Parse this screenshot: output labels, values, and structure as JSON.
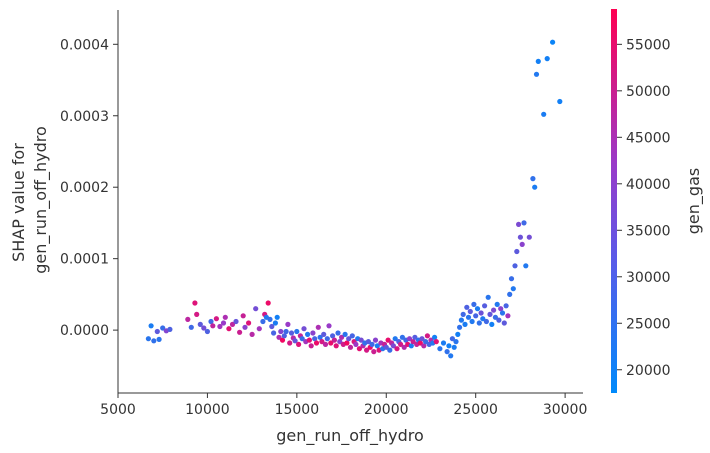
{
  "chart_data": {
    "type": "scatter",
    "title": "",
    "xlabel": "gen_run_off_hydro",
    "ylabel_lines": [
      "SHAP value for",
      "gen_run_off_hydro"
    ],
    "xlim": [
      5000,
      31000
    ],
    "ylim": [
      -8.8e-05,
      0.000448
    ],
    "xticks": [
      5000,
      10000,
      15000,
      20000,
      25000,
      30000
    ],
    "xtick_labels": [
      "5000",
      "10000",
      "15000",
      "20000",
      "25000",
      "30000"
    ],
    "yticks": [
      0.0,
      0.0001,
      0.0002,
      0.0003,
      0.0004
    ],
    "ytick_labels": [
      "0.0000",
      "0.0001",
      "0.0002",
      "0.0003",
      "0.0004"
    ],
    "grid": false,
    "colorbar": {
      "label": "gen_gas",
      "range": [
        17500,
        58800
      ],
      "ticks": [
        20000,
        25000,
        30000,
        35000,
        40000,
        45000,
        50000,
        55000
      ],
      "tick_labels": [
        "20000",
        "25000",
        "30000",
        "35000",
        "40000",
        "45000",
        "50000",
        "55000"
      ],
      "colormap": [
        "#008afb",
        "#ff0052"
      ]
    },
    "points": [
      [
        6700,
        -1.2e-05,
        23000
      ],
      [
        6850,
        6e-06,
        21000
      ],
      [
        7000,
        -1.5e-05,
        24000
      ],
      [
        7200,
        -2e-06,
        30000
      ],
      [
        7300,
        -1.3e-05,
        23000
      ],
      [
        7500,
        3e-06,
        25000
      ],
      [
        7700,
        -1e-06,
        35000
      ],
      [
        7900,
        1e-06,
        28000
      ],
      [
        8900,
        1.5e-05,
        45000
      ],
      [
        9100,
        4e-06,
        26000
      ],
      [
        9300,
        3.8e-05,
        52000
      ],
      [
        9400,
        2.2e-05,
        50000
      ],
      [
        9600,
        8e-06,
        30000
      ],
      [
        9800,
        3e-06,
        33000
      ],
      [
        10000,
        -2e-06,
        28000
      ],
      [
        10200,
        1.2e-05,
        26000
      ],
      [
        10300,
        6e-06,
        46000
      ],
      [
        10500,
        1.6e-05,
        50000
      ],
      [
        10700,
        5e-06,
        40000
      ],
      [
        10900,
        1e-05,
        38000
      ],
      [
        11000,
        1.8e-05,
        42000
      ],
      [
        11200,
        2e-06,
        53000
      ],
      [
        11400,
        8e-06,
        45000
      ],
      [
        11600,
        1.2e-05,
        31000
      ],
      [
        11800,
        -3e-06,
        48000
      ],
      [
        12000,
        2e-05,
        47000
      ],
      [
        12100,
        4e-06,
        36000
      ],
      [
        12300,
        1e-05,
        52000
      ],
      [
        12500,
        -6e-06,
        44000
      ],
      [
        12700,
        3e-05,
        33000
      ],
      [
        12900,
        2e-06,
        40000
      ],
      [
        13100,
        1.2e-05,
        25000
      ],
      [
        13200,
        2.2e-05,
        50000
      ],
      [
        13300,
        1.8e-05,
        22000
      ],
      [
        13400,
        3.8e-05,
        55000
      ],
      [
        13500,
        1.5e-05,
        24000
      ],
      [
        13600,
        5e-06,
        30000
      ],
      [
        13700,
        -4e-06,
        27000
      ],
      [
        13800,
        1e-05,
        21000
      ],
      [
        13900,
        1.8e-05,
        20000
      ],
      [
        14000,
        -1e-05,
        42000
      ],
      [
        14100,
        -2e-06,
        35000
      ],
      [
        14200,
        -1.4e-05,
        56000
      ],
      [
        14300,
        -8e-06,
        28000
      ],
      [
        14400,
        -2e-06,
        26000
      ],
      [
        14500,
        8e-06,
        38000
      ],
      [
        14600,
        -1.8e-05,
        50000
      ],
      [
        14700,
        -4e-06,
        29000
      ],
      [
        14800,
        -1.1e-05,
        44000
      ],
      [
        14900,
        -1.5e-05,
        31000
      ],
      [
        15000,
        -2e-06,
        23000
      ],
      [
        15100,
        -2e-05,
        52000
      ],
      [
        15200,
        -8e-06,
        46000
      ],
      [
        15300,
        -1.2e-05,
        25000
      ],
      [
        15400,
        2e-06,
        33000
      ],
      [
        15500,
        -1.6e-05,
        40000
      ],
      [
        15600,
        -6e-06,
        22000
      ],
      [
        15700,
        -1.4e-05,
        53000
      ],
      [
        15800,
        -2.2e-05,
        48000
      ],
      [
        15900,
        -4e-06,
        36000
      ],
      [
        16000,
        -1.2e-05,
        27000
      ],
      [
        16100,
        -1.8e-05,
        55000
      ],
      [
        16200,
        4e-06,
        42000
      ],
      [
        16300,
        -1e-05,
        24000
      ],
      [
        16400,
        -1.6e-05,
        50000
      ],
      [
        16500,
        -6e-06,
        30000
      ],
      [
        16600,
        -2e-05,
        45000
      ],
      [
        16700,
        -1.2e-05,
        26000
      ],
      [
        16800,
        6e-06,
        38000
      ],
      [
        16900,
        -1.8e-05,
        54000
      ],
      [
        17000,
        -8e-06,
        28000
      ],
      [
        17100,
        -1.4e-05,
        47000
      ],
      [
        17200,
        -2.2e-05,
        52000
      ],
      [
        17300,
        -4e-06,
        25000
      ],
      [
        17400,
        -1.6e-05,
        35000
      ],
      [
        17500,
        -1e-05,
        43000
      ],
      [
        17600,
        -2e-05,
        49000
      ],
      [
        17700,
        -6e-06,
        23000
      ],
      [
        17800,
        -1.8e-05,
        56000
      ],
      [
        17900,
        -1.2e-05,
        31000
      ],
      [
        18000,
        -2.4e-05,
        46000
      ],
      [
        18100,
        -8e-06,
        27000
      ],
      [
        18200,
        -1.6e-05,
        51000
      ],
      [
        18300,
        -2e-05,
        39000
      ],
      [
        18400,
        -1.2e-05,
        22000
      ],
      [
        18500,
        -2.6e-05,
        53000
      ],
      [
        18600,
        -1.4e-05,
        33000
      ],
      [
        18700,
        -2.2e-05,
        44000
      ],
      [
        18800,
        -1.8e-05,
        24000
      ],
      [
        18900,
        -2.8e-05,
        50000
      ],
      [
        19000,
        -1.6e-05,
        29000
      ],
      [
        19100,
        -2.4e-05,
        55000
      ],
      [
        19200,
        -2e-05,
        26000
      ],
      [
        19300,
        -3e-05,
        48000
      ],
      [
        19400,
        -1.4e-05,
        36000
      ],
      [
        19500,
        -2.2e-05,
        21000
      ],
      [
        19600,
        -2.8e-05,
        52000
      ],
      [
        19700,
        -1.8e-05,
        41000
      ],
      [
        19800,
        -2.6e-05,
        23000
      ],
      [
        19900,
        -2e-05,
        47000
      ],
      [
        20000,
        -2.4e-05,
        30000
      ],
      [
        20100,
        -1.4e-05,
        54000
      ],
      [
        20200,
        -2.8e-05,
        25000
      ],
      [
        20300,
        -1.8e-05,
        45000
      ],
      [
        20400,
        -2.2e-05,
        34000
      ],
      [
        20500,
        -1.2e-05,
        22000
      ],
      [
        20600,
        -2.6e-05,
        51000
      ],
      [
        20700,
        -1.6e-05,
        28000
      ],
      [
        20800,
        -2e-05,
        49000
      ],
      [
        20900,
        -1e-05,
        24000
      ],
      [
        21000,
        -2.4e-05,
        43000
      ],
      [
        21100,
        -1.4e-05,
        26000
      ],
      [
        21200,
        -2e-05,
        53000
      ],
      [
        21300,
        -1.2e-05,
        37000
      ],
      [
        21400,
        -2.2e-05,
        21000
      ],
      [
        21500,
        -1.6e-05,
        48000
      ],
      [
        21600,
        -1e-05,
        29000
      ],
      [
        21700,
        -2e-05,
        46000
      ],
      [
        21800,
        -1.4e-05,
        23000
      ],
      [
        21900,
        -1.8e-05,
        55000
      ],
      [
        22000,
        -1.2e-05,
        32000
      ],
      [
        22100,
        -2.2e-05,
        44000
      ],
      [
        22200,
        -1.6e-05,
        25000
      ],
      [
        22300,
        -8e-06,
        50000
      ],
      [
        22400,
        -2e-05,
        27000
      ],
      [
        22500,
        -1.4e-05,
        42000
      ],
      [
        22600,
        -1.8e-05,
        22000
      ],
      [
        22700,
        -1e-05,
        20000
      ],
      [
        22800,
        -1.6e-05,
        52000
      ],
      [
        23000,
        -2.6e-05,
        23000
      ],
      [
        23200,
        -1.8e-05,
        21000
      ],
      [
        23400,
        -3e-05,
        24000
      ],
      [
        23500,
        -2.2e-05,
        20000
      ],
      [
        23600,
        -3.6e-05,
        22000
      ],
      [
        23700,
        -1.2e-05,
        26000
      ],
      [
        23800,
        -2.4e-05,
        21000
      ],
      [
        23900,
        -1.6e-05,
        23000
      ],
      [
        24000,
        -6e-06,
        20000
      ],
      [
        24100,
        4e-06,
        24000
      ],
      [
        24200,
        1.4e-05,
        22000
      ],
      [
        24300,
        2.2e-05,
        26000
      ],
      [
        24400,
        8e-06,
        21000
      ],
      [
        24500,
        3.2e-05,
        28000
      ],
      [
        24600,
        1.8e-05,
        23000
      ],
      [
        24700,
        2.6e-05,
        30000
      ],
      [
        24800,
        1.2e-05,
        22000
      ],
      [
        24900,
        3.6e-05,
        25000
      ],
      [
        25000,
        2e-05,
        27000
      ],
      [
        25100,
        3e-05,
        21000
      ],
      [
        25200,
        1e-05,
        24000
      ],
      [
        25300,
        2.4e-05,
        32000
      ],
      [
        25400,
        1.6e-05,
        22000
      ],
      [
        25500,
        3.4e-05,
        29000
      ],
      [
        25600,
        1.2e-05,
        26000
      ],
      [
        25700,
        4.6e-05,
        23000
      ],
      [
        25800,
        2.2e-05,
        31000
      ],
      [
        25900,
        8e-06,
        20000
      ],
      [
        26000,
        2.8e-05,
        34000
      ],
      [
        26100,
        1.8e-05,
        25000
      ],
      [
        26200,
        3.6e-05,
        22000
      ],
      [
        26300,
        1.4e-05,
        28000
      ],
      [
        26400,
        3e-05,
        36000
      ],
      [
        26500,
        2.4e-05,
        23000
      ],
      [
        26600,
        1e-05,
        30000
      ],
      [
        26700,
        3.4e-05,
        27000
      ],
      [
        26800,
        2e-05,
        40000
      ],
      [
        26900,
        5e-05,
        24000
      ],
      [
        27000,
        7.2e-05,
        25000
      ],
      [
        27100,
        5.8e-05,
        22000
      ],
      [
        27200,
        9e-05,
        28000
      ],
      [
        27300,
        0.00011,
        30000
      ],
      [
        27400,
        0.000148,
        34000
      ],
      [
        27500,
        0.00013,
        32000
      ],
      [
        27600,
        0.00012,
        36000
      ],
      [
        27700,
        0.00015,
        26000
      ],
      [
        27800,
        9e-05,
        22000
      ],
      [
        28000,
        0.00013,
        33000
      ],
      [
        28200,
        0.000212,
        24000
      ],
      [
        28300,
        0.0002,
        21000
      ],
      [
        28400,
        0.000358,
        22000
      ],
      [
        28500,
        0.000376,
        20000
      ],
      [
        28800,
        0.000302,
        21000
      ],
      [
        29000,
        0.00038,
        20000
      ],
      [
        29300,
        0.000403,
        19000
      ],
      [
        29700,
        0.00032,
        20000
      ]
    ]
  }
}
